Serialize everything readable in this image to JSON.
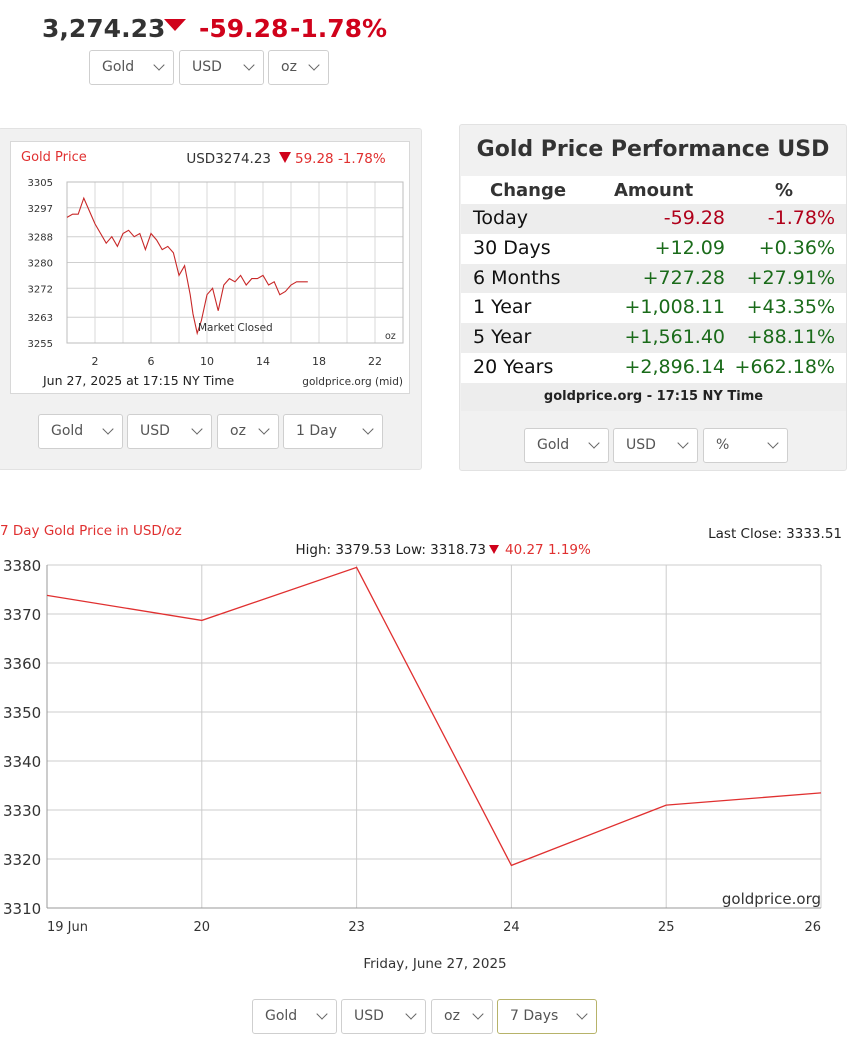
{
  "top": {
    "price": "3,274.23",
    "change": "-59.28",
    "change_pct": "-1.78%",
    "selects": [
      "Gold",
      "USD",
      "oz"
    ]
  },
  "mini_chart": {
    "title": "Gold Price",
    "quote_prefix": "USD3274.23",
    "quote_change": "59.28 -1.78%",
    "note": "Market Closed",
    "unit": "oz",
    "date": "Jun 27, 2025 at 17:15 NY Time",
    "source": "goldprice.org (mid)",
    "selects": [
      "Gold",
      "USD",
      "oz",
      "1 Day"
    ]
  },
  "performance": {
    "title": "Gold Price Performance USD",
    "headers": [
      "Change",
      "Amount",
      "%"
    ],
    "rows": [
      {
        "label": "Today",
        "amount": "-59.28",
        "pct": "-1.78%",
        "dir": "neg"
      },
      {
        "label": "30 Days",
        "amount": "+12.09",
        "pct": "+0.36%",
        "dir": "pos"
      },
      {
        "label": "6 Months",
        "amount": "+727.28",
        "pct": "+27.91%",
        "dir": "pos"
      },
      {
        "label": "1 Year",
        "amount": "+1,008.11",
        "pct": "+43.35%",
        "dir": "pos"
      },
      {
        "label": "5 Year",
        "amount": "+1,561.40",
        "pct": "+88.11%",
        "dir": "pos"
      },
      {
        "label": "20 Years",
        "amount": "+2,896.14",
        "pct": "+662.18%",
        "dir": "pos"
      }
    ],
    "footer": "goldprice.org - 17:15 NY Time",
    "selects": [
      "Gold",
      "USD",
      "%"
    ]
  },
  "main_chart": {
    "title": "7 Day Gold Price in USD/oz",
    "last_close": "Last Close: 3333.51",
    "hl_text": "High: 3379.53 Low: 3318.73",
    "hl_change": "40.27 1.19%",
    "watermark": "goldprice.org",
    "footer_date": "Friday, June 27, 2025",
    "selects": [
      "Gold",
      "USD",
      "oz",
      "7 Days"
    ]
  },
  "colors": {
    "line": "#e03030",
    "down": "#d0021b",
    "pos": "#1a6b1a",
    "neg": "#b0001a"
  },
  "chart_data": [
    {
      "type": "line",
      "title": "Gold Price",
      "x_ticks": [
        "2",
        "6",
        "10",
        "14",
        "18",
        "22"
      ],
      "y_ticks": [
        3305,
        3297,
        3288,
        3280,
        3272,
        3263,
        3255
      ],
      "ylim": [
        3255,
        3305
      ],
      "xlim": [
        0,
        24
      ],
      "series": [
        {
          "x": [
            0,
            0.4,
            0.8,
            1.2,
            1.6,
            2.0,
            2.4,
            2.8,
            3.2,
            3.6,
            4.0,
            4.4,
            4.8,
            5.2,
            5.6,
            6.0,
            6.4,
            6.8,
            7.2,
            7.6,
            8.0,
            8.4,
            8.8,
            9.0,
            9.3,
            9.6,
            10.0,
            10.4,
            10.8,
            11.2,
            11.6,
            12.0,
            12.4,
            12.8,
            13.2,
            13.6,
            14.0,
            14.4,
            14.8,
            15.2,
            15.6,
            16.0,
            16.4,
            16.8,
            17.2
          ],
          "y": [
            3294,
            3295,
            3295,
            3300,
            3296,
            3292,
            3289,
            3286,
            3288,
            3285,
            3289,
            3290,
            3288,
            3289,
            3284,
            3289,
            3287,
            3284,
            3285,
            3283,
            3276,
            3279,
            3270,
            3264,
            3258,
            3262,
            3270,
            3272,
            3265,
            3273,
            3275,
            3274,
            3276,
            3273,
            3275,
            3275,
            3276,
            3273,
            3274,
            3270,
            3271,
            3273,
            3274,
            3274,
            3274
          ]
        }
      ]
    },
    {
      "type": "line",
      "title": "7 Day Gold Price in USD/oz",
      "categories": [
        "19 Jun",
        "20",
        "23",
        "24",
        "25",
        "26"
      ],
      "y_ticks": [
        3380,
        3370,
        3360,
        3350,
        3340,
        3330,
        3320,
        3310
      ],
      "ylim": [
        3310,
        3380
      ],
      "xlabel": "Friday, June 27, 2025",
      "series": [
        {
          "values": [
            3373.8,
            3368.7,
            3379.5,
            3318.7,
            3331.0,
            3333.5
          ]
        }
      ]
    }
  ]
}
